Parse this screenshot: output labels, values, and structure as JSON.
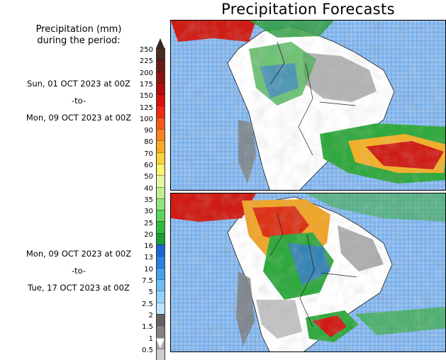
{
  "title": "Precipitation Forecasts",
  "legend": {
    "title_line1": "Precipitation (mm)",
    "title_line2": "during the period:",
    "levels": [
      "250",
      "225",
      "200",
      "175",
      "150",
      "125",
      "100",
      "90",
      "80",
      "70",
      "60",
      "50",
      "40",
      "35",
      "30",
      "25",
      "20",
      "16",
      "13",
      "10",
      "7.5",
      "5",
      "2.5",
      "2",
      "1.5",
      "1",
      "0.5"
    ],
    "colors": {
      "top_arrow": "#3a2a22",
      "swatches": [
        "#4a2c24",
        "#6b1e14",
        "#8d1410",
        "#b00c0c",
        "#d80f0f",
        "#ee2a14",
        "#f45a18",
        "#f88220",
        "#fbaa28",
        "#fcd23a",
        "#fdf06a",
        "#e4f6a0",
        "#c2ee90",
        "#92e478",
        "#5ed45a",
        "#32bc3c",
        "#18a032",
        "#1e64d2",
        "#2b82e4",
        "#46a0f0",
        "#6cbcf6",
        "#92d2fa",
        "#b8e4fc",
        "#646464",
        "#848484",
        "#a8a8a8",
        "#cccccc"
      ],
      "ocean": "#7fb2ea",
      "land_dry": "#ffffff",
      "heavy": "#c81412",
      "green": "#2ea83c",
      "blue": "#3a78dc",
      "gray": "#8a8a8a"
    }
  },
  "panels": [
    {
      "start": "Sun, 01 OCT 2023 at 00Z",
      "separator": "-to-",
      "end": "Mon, 09 OCT 2023 at 00Z"
    },
    {
      "start": "Mon, 09 OCT 2023 at 00Z",
      "separator": "-to-",
      "end": "Tue, 17 OCT 2023 at 00Z"
    }
  ]
}
